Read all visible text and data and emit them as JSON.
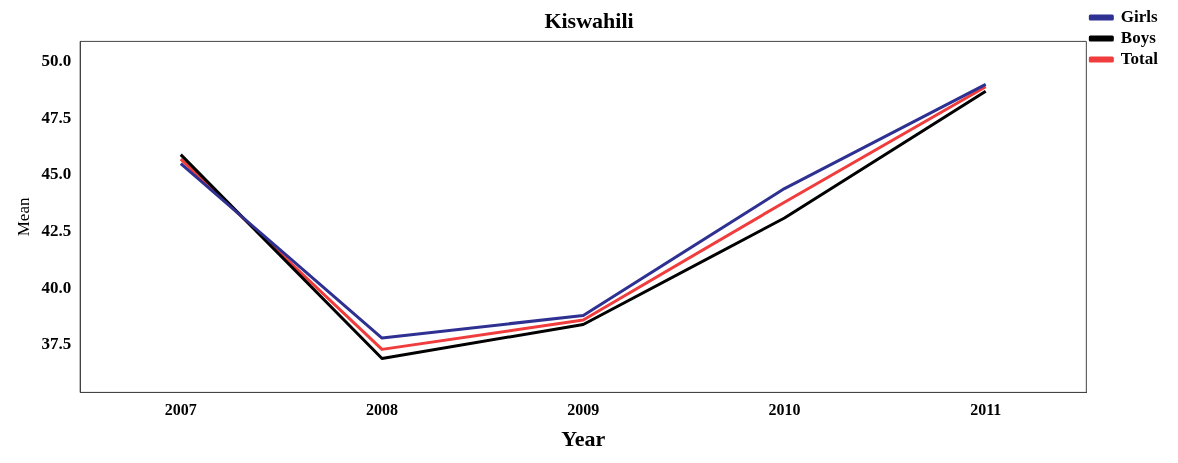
{
  "chart_data": {
    "type": "line",
    "title": "Kiswahili",
    "xlabel": "Year",
    "ylabel": "Mean",
    "categories": [
      "2007",
      "2008",
      "2009",
      "2010",
      "2011"
    ],
    "series": [
      {
        "name": "Girls",
        "color": "#2e3192",
        "values": [
          45.5,
          37.8,
          38.8,
          44.4,
          49.0
        ]
      },
      {
        "name": "Boys",
        "color": "#000000",
        "values": [
          45.9,
          36.9,
          38.4,
          43.1,
          48.7
        ]
      },
      {
        "name": "Total",
        "color": "#f03c3c",
        "values": [
          45.7,
          37.3,
          38.6,
          43.8,
          48.9
        ]
      }
    ],
    "ylim": [
      35.4,
      50.9
    ],
    "yticks": [
      {
        "value": 37.5,
        "label": "37.5"
      },
      {
        "value": 40,
        "label": "40.0"
      },
      {
        "value": 42.5,
        "label": "42.5"
      },
      {
        "value": 45,
        "label": "45.0"
      },
      {
        "value": 47.5,
        "label": "47.5"
      },
      {
        "value": 50,
        "label": "50.0"
      }
    ],
    "grid": false,
    "legend": "top right",
    "marker": "none",
    "line_style": "solid"
  }
}
